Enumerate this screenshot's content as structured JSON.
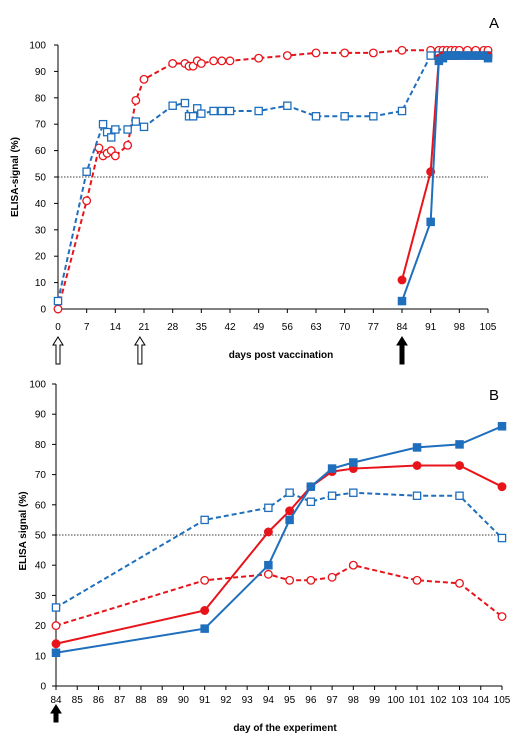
{
  "colors": {
    "red": "#e8141b",
    "blue": "#1f6fbd",
    "threshold": "#000000"
  },
  "chart_data": [
    {
      "type": "line",
      "panel_label": "A",
      "xlabel": "days post vaccination",
      "ylabel": "ELISA-signal (%)",
      "xlim": [
        0,
        105
      ],
      "ylim": [
        0,
        100
      ],
      "xticks": [
        0,
        7,
        14,
        21,
        28,
        35,
        42,
        49,
        56,
        63,
        70,
        77,
        84,
        91,
        98,
        105
      ],
      "yticks": [
        0,
        10,
        20,
        30,
        40,
        50,
        60,
        70,
        80,
        90,
        100
      ],
      "threshold": 50,
      "arrows": [
        {
          "x": 0,
          "style": "open"
        },
        {
          "x": 20,
          "style": "open"
        },
        {
          "x": 84,
          "style": "filled"
        }
      ],
      "series": [
        {
          "color": "red",
          "marker": "circle",
          "filled": false,
          "dashed": true,
          "x": [
            0,
            7,
            10,
            11,
            12,
            13,
            14,
            17,
            19,
            21,
            28,
            31,
            32,
            33,
            34,
            35,
            38,
            40,
            42,
            49,
            56,
            63,
            70,
            77,
            84,
            91,
            93,
            94,
            95,
            96,
            97,
            98,
            100,
            102,
            104,
            105
          ],
          "y": [
            0,
            41,
            61,
            58,
            59,
            60,
            58,
            62,
            79,
            87,
            93,
            93,
            92,
            92,
            94,
            93,
            94,
            94,
            94,
            95,
            96,
            97,
            97,
            97,
            98,
            98,
            98,
            98,
            98,
            98,
            98,
            98,
            98,
            98,
            98,
            98
          ]
        },
        {
          "color": "blue",
          "marker": "square",
          "filled": false,
          "dashed": true,
          "x": [
            0,
            7,
            11,
            12,
            13,
            14,
            17,
            19,
            21,
            28,
            31,
            32,
            33,
            34,
            35,
            38,
            40,
            42,
            49,
            56,
            63,
            70,
            77,
            84,
            91,
            93,
            94,
            95,
            96,
            97,
            98,
            100,
            102,
            104,
            105
          ],
          "y": [
            3,
            52,
            70,
            67,
            65,
            68,
            68,
            71,
            69,
            77,
            78,
            73,
            73,
            76,
            74,
            75,
            75,
            75,
            75,
            77,
            73,
            73,
            73,
            75,
            96,
            96,
            96,
            96,
            96,
            96,
            96,
            96,
            96,
            96,
            96
          ]
        },
        {
          "color": "red",
          "marker": "circle",
          "filled": true,
          "dashed": false,
          "x": [
            84,
            91,
            93,
            94,
            95,
            96,
            97,
            98,
            100,
            102,
            104,
            105
          ],
          "y": [
            11,
            52,
            95,
            96,
            96,
            96,
            96,
            96,
            96,
            96,
            96,
            96
          ]
        },
        {
          "color": "blue",
          "marker": "square",
          "filled": true,
          "dashed": false,
          "x": [
            84,
            91,
            93,
            94,
            95,
            96,
            97,
            98,
            100,
            102,
            104,
            105
          ],
          "y": [
            3,
            33,
            94,
            95,
            96,
            96,
            96,
            96,
            96,
            96,
            96,
            95
          ]
        }
      ]
    },
    {
      "type": "line",
      "panel_label": "B",
      "xlabel": "day of the experiment",
      "ylabel": "ELISA signal (%)",
      "xlim": [
        84,
        105
      ],
      "ylim": [
        0,
        100
      ],
      "xticks": [
        84,
        85,
        86,
        87,
        88,
        89,
        90,
        91,
        92,
        93,
        94,
        95,
        96,
        97,
        98,
        99,
        100,
        101,
        102,
        103,
        104,
        105
      ],
      "yticks": [
        0,
        10,
        20,
        30,
        40,
        50,
        60,
        70,
        80,
        90,
        100
      ],
      "threshold": 50,
      "arrows": [
        {
          "x": 84,
          "style": "filled"
        }
      ],
      "series": [
        {
          "color": "blue",
          "marker": "square",
          "filled": false,
          "dashed": true,
          "x": [
            84,
            91,
            94,
            95,
            96,
            97,
            98,
            101,
            103,
            105
          ],
          "y": [
            26,
            55,
            59,
            64,
            61,
            63,
            64,
            63,
            63,
            49
          ]
        },
        {
          "color": "red",
          "marker": "circle",
          "filled": false,
          "dashed": true,
          "x": [
            84,
            91,
            94,
            95,
            96,
            97,
            98,
            101,
            103,
            105
          ],
          "y": [
            20,
            35,
            37,
            35,
            35,
            36,
            40,
            35,
            34,
            23
          ]
        },
        {
          "color": "red",
          "marker": "circle",
          "filled": true,
          "dashed": false,
          "x": [
            84,
            91,
            94,
            95,
            96,
            97,
            98,
            101,
            103,
            105
          ],
          "y": [
            14,
            25,
            51,
            58,
            66,
            71,
            72,
            73,
            73,
            66
          ]
        },
        {
          "color": "blue",
          "marker": "square",
          "filled": true,
          "dashed": false,
          "x": [
            84,
            91,
            94,
            95,
            96,
            97,
            98,
            101,
            103,
            105
          ],
          "y": [
            11,
            19,
            40,
            55,
            66,
            72,
            74,
            79,
            80,
            86
          ]
        }
      ]
    }
  ]
}
